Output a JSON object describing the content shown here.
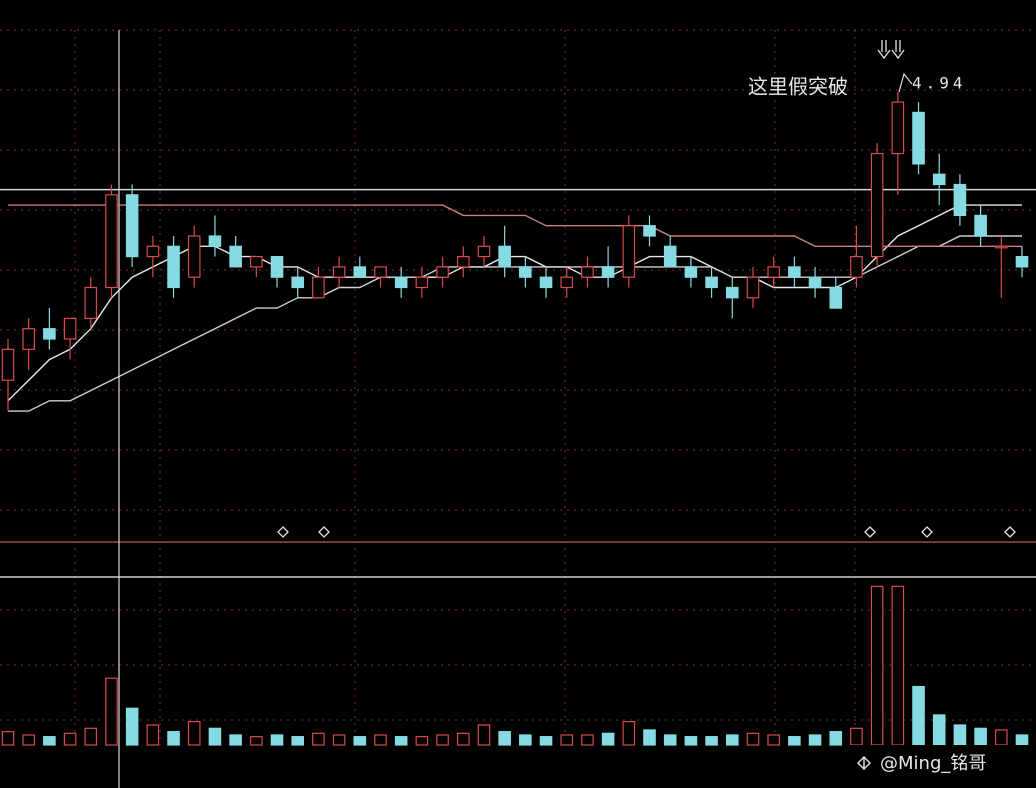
{
  "chart_data": {
    "type": "candlestick",
    "annotation": "这里假突破",
    "ylim": [
      4.5,
      5.0
    ],
    "up_color": "#d84c4c",
    "down_color": "#86dbe3",
    "grid": true,
    "open": [
      4.66,
      4.69,
      4.71,
      4.7,
      4.72,
      4.75,
      4.84,
      4.78,
      4.79,
      4.76,
      4.8,
      4.79,
      4.77,
      4.78,
      4.76,
      4.74,
      4.76,
      4.77,
      4.76,
      4.76,
      4.75,
      4.76,
      4.77,
      4.78,
      4.79,
      4.77,
      4.76,
      4.75,
      4.76,
      4.77,
      4.76,
      4.81,
      4.79,
      4.77,
      4.76,
      4.75,
      4.74,
      4.76,
      4.77,
      4.76,
      4.75,
      4.76,
      4.78,
      4.88,
      4.92,
      4.86,
      4.85,
      4.82,
      4.79,
      4.78
    ],
    "high": [
      4.7,
      4.72,
      4.73,
      4.72,
      4.76,
      4.85,
      4.85,
      4.8,
      4.8,
      4.81,
      4.82,
      4.8,
      4.78,
      4.78,
      4.77,
      4.77,
      4.78,
      4.78,
      4.77,
      4.77,
      4.77,
      4.78,
      4.79,
      4.8,
      4.81,
      4.78,
      4.77,
      4.77,
      4.78,
      4.79,
      4.82,
      4.82,
      4.8,
      4.78,
      4.77,
      4.76,
      4.77,
      4.78,
      4.78,
      4.77,
      4.76,
      4.81,
      4.89,
      4.94,
      4.93,
      4.88,
      4.86,
      4.83,
      4.8,
      4.79
    ],
    "low": [
      4.63,
      4.67,
      4.69,
      4.68,
      4.71,
      4.74,
      4.77,
      4.76,
      4.74,
      4.75,
      4.78,
      4.77,
      4.76,
      4.75,
      4.74,
      4.74,
      4.75,
      4.76,
      4.75,
      4.74,
      4.74,
      4.75,
      4.76,
      4.77,
      4.76,
      4.75,
      4.74,
      4.74,
      4.75,
      4.75,
      4.75,
      4.79,
      4.77,
      4.75,
      4.74,
      4.72,
      4.73,
      4.75,
      4.75,
      4.74,
      4.73,
      4.75,
      4.77,
      4.84,
      4.86,
      4.83,
      4.81,
      4.79,
      4.74,
      4.76
    ],
    "close": [
      4.69,
      4.71,
      4.7,
      4.72,
      4.75,
      4.84,
      4.78,
      4.79,
      4.75,
      4.8,
      4.79,
      4.77,
      4.78,
      4.76,
      4.75,
      4.76,
      4.77,
      4.76,
      4.77,
      4.75,
      4.76,
      4.77,
      4.78,
      4.79,
      4.77,
      4.76,
      4.75,
      4.76,
      4.77,
      4.76,
      4.81,
      4.8,
      4.77,
      4.76,
      4.75,
      4.74,
      4.76,
      4.77,
      4.76,
      4.75,
      4.73,
      4.78,
      4.88,
      4.93,
      4.87,
      4.85,
      4.82,
      4.8,
      4.79,
      4.77
    ],
    "moving_averages": [
      {
        "color": "#e8e8e8",
        "values": [
          4.64,
          4.66,
          4.68,
          4.69,
          4.71,
          4.74,
          4.76,
          4.77,
          4.78,
          4.79,
          4.79,
          4.78,
          4.78,
          4.77,
          4.77,
          4.76,
          4.76,
          4.76,
          4.76,
          4.76,
          4.76,
          4.76,
          4.77,
          4.77,
          4.78,
          4.78,
          4.77,
          4.77,
          4.76,
          4.76,
          4.77,
          4.78,
          4.78,
          4.78,
          4.77,
          4.76,
          4.76,
          4.75,
          4.75,
          4.75,
          4.75,
          4.76,
          4.78,
          4.8,
          4.81,
          4.82,
          4.83,
          4.83,
          4.83,
          4.83
        ]
      },
      {
        "color": "#d0d0d0",
        "values": [
          4.63,
          4.63,
          4.64,
          4.64,
          4.65,
          4.66,
          4.67,
          4.68,
          4.69,
          4.7,
          4.71,
          4.72,
          4.73,
          4.73,
          4.74,
          4.74,
          4.75,
          4.75,
          4.76,
          4.76,
          4.76,
          4.77,
          4.77,
          4.77,
          4.77,
          4.77,
          4.77,
          4.77,
          4.77,
          4.77,
          4.77,
          4.77,
          4.77,
          4.77,
          4.77,
          4.76,
          4.76,
          4.76,
          4.76,
          4.76,
          4.76,
          4.76,
          4.77,
          4.78,
          4.79,
          4.79,
          4.8,
          4.8,
          4.8,
          4.8
        ]
      },
      {
        "color": "#c88080",
        "values": [
          4.83,
          4.83,
          4.83,
          4.83,
          4.83,
          4.83,
          4.83,
          4.83,
          4.83,
          4.83,
          4.83,
          4.83,
          4.83,
          4.83,
          4.83,
          4.83,
          4.83,
          4.83,
          4.83,
          4.83,
          4.83,
          4.83,
          4.82,
          4.82,
          4.82,
          4.82,
          4.81,
          4.81,
          4.81,
          4.81,
          4.81,
          4.81,
          4.8,
          4.8,
          4.8,
          4.8,
          4.8,
          4.8,
          4.8,
          4.79,
          4.79,
          4.79,
          4.79,
          4.79,
          4.79,
          4.79,
          4.79,
          4.79,
          4.79,
          4.79
        ]
      }
    ],
    "reference_lines": [
      {
        "value": 4.845,
        "color": "#d8d8d8"
      }
    ],
    "volume": {
      "ylim": [
        0,
        100
      ],
      "values": [
        8,
        6,
        5,
        7,
        10,
        40,
        22,
        12,
        8,
        14,
        10,
        6,
        5,
        6,
        5,
        7,
        6,
        5,
        6,
        5,
        5,
        6,
        7,
        12,
        8,
        6,
        5,
        6,
        6,
        7,
        14,
        9,
        6,
        5,
        5,
        6,
        7,
        6,
        5,
        6,
        8,
        10,
        95,
        95,
        35,
        18,
        12,
        10,
        9,
        6
      ]
    }
  },
  "watermark": "@Ming_铭哥"
}
